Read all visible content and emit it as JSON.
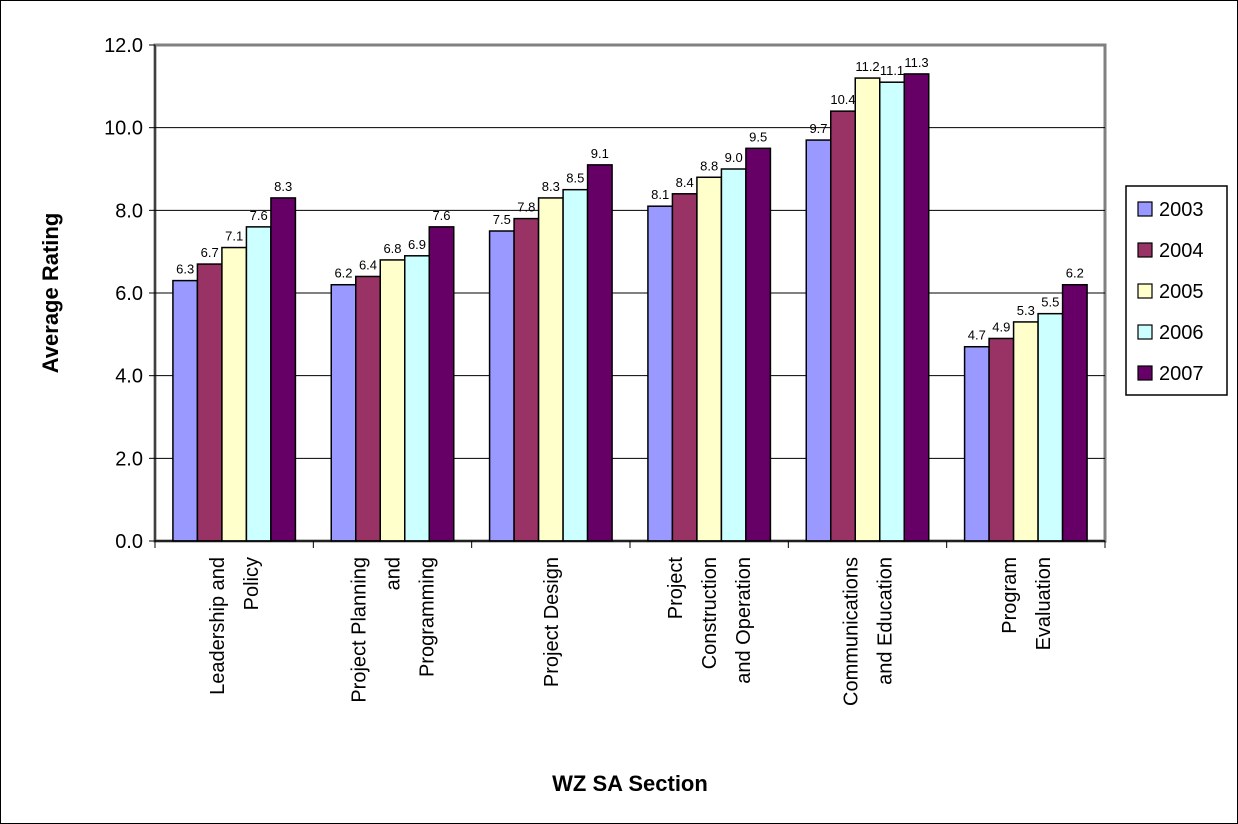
{
  "chart_data": {
    "type": "bar",
    "title": "",
    "xlabel": "WZ SA Section",
    "ylabel": "Average Rating",
    "ylim": [
      0,
      12
    ],
    "yticks": [
      "0.0",
      "2.0",
      "4.0",
      "6.0",
      "8.0",
      "10.0",
      "12.0"
    ],
    "grid": true,
    "legend_position": "right",
    "categories": [
      [
        "Leadership and",
        "Policy"
      ],
      [
        "Project Planning",
        "and",
        "Programming"
      ],
      [
        "Project Design"
      ],
      [
        "Project",
        "Construction",
        "and Operation"
      ],
      [
        "Communications",
        "and Education"
      ],
      [
        "Program",
        "Evaluation"
      ]
    ],
    "series": [
      {
        "name": "2003",
        "color": "#9999ff",
        "values": [
          6.3,
          6.2,
          7.5,
          8.1,
          9.7,
          4.7
        ],
        "labels": [
          "6.3",
          "6.2",
          "7.5",
          "8.1",
          "9.7",
          "4.7"
        ]
      },
      {
        "name": "2004",
        "color": "#993366",
        "values": [
          6.7,
          6.4,
          7.8,
          8.4,
          10.4,
          4.9
        ],
        "labels": [
          "6.7",
          "6.4",
          "7.8",
          "8.4",
          "10.4",
          "4.9"
        ]
      },
      {
        "name": "2005",
        "color": "#ffffcc",
        "values": [
          7.1,
          6.8,
          8.3,
          8.8,
          11.2,
          5.3
        ],
        "labels": [
          "7.1",
          "6.8",
          "8.3",
          "8.8",
          "11.2",
          "5.3"
        ]
      },
      {
        "name": "2006",
        "color": "#ccffff",
        "values": [
          7.6,
          6.9,
          8.5,
          9.0,
          11.1,
          5.5
        ],
        "labels": [
          "7.6",
          "6.9",
          "8.5",
          "9.0",
          "11.1",
          "5.5"
        ]
      },
      {
        "name": "2007",
        "color": "#660066",
        "values": [
          8.3,
          7.6,
          9.1,
          9.5,
          11.3,
          6.2
        ],
        "labels": [
          "8.3",
          "7.6",
          "9.1",
          "9.5",
          "11.3",
          "6.2"
        ]
      }
    ]
  }
}
